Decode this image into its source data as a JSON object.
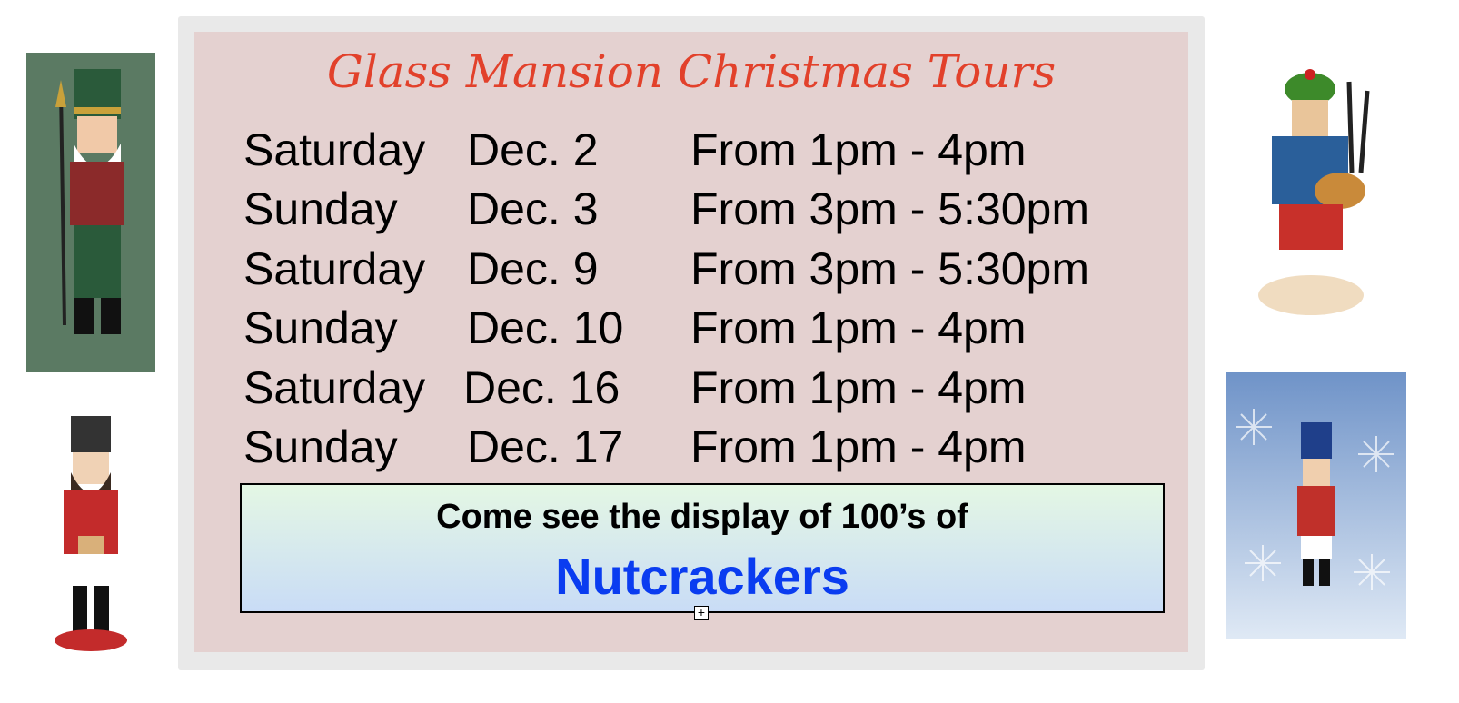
{
  "title": "Glass Mansion Christmas Tours",
  "schedule": [
    {
      "day": "Saturday",
      "date": "Dec. 2",
      "time": "From 1pm - 4pm"
    },
    {
      "day": "Sunday",
      "date": "Dec. 3",
      "time": "From 3pm - 5:30pm"
    },
    {
      "day": "Saturday",
      "date": "Dec. 9",
      "time": "From 3pm - 5:30pm"
    },
    {
      "day": "Sunday",
      "date": "Dec. 10",
      "time": "From 1pm - 4pm"
    },
    {
      "day": "Saturday",
      "date": "Dec. 16",
      "time": "From 1pm - 4pm"
    },
    {
      "day": "Sunday",
      "date": "Dec. 17",
      "time": "From 1pm - 4pm"
    }
  ],
  "promo": {
    "line1": "Come see the display of 100’s of",
    "line2": "Nutcrackers"
  },
  "colors": {
    "title": "#e2412b",
    "card": "#e4d1d0",
    "highlight": "#0a3cf0"
  },
  "images": [
    "nutcracker-green-illustration",
    "nutcracker-red-figurine",
    "nutcracker-bagpiper-figurine",
    "nutcracker-snowflake-card"
  ]
}
